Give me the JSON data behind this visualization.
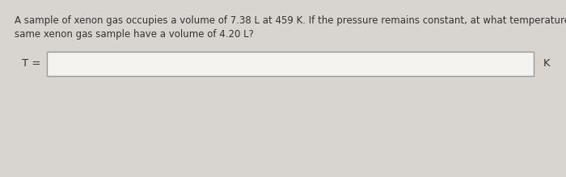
{
  "background_color": "#d8d4cf",
  "card_color": "#f0eeeb",
  "question_text_line1": "A sample of xenon gas occupies a volume of 7.38 L at 459 K. If the pressure remains constant, at what temperature will this",
  "question_text_line2": "same xenon gas sample have a volume of 4.20 L?",
  "label_T": "T =",
  "label_K": "K",
  "box_color": "#f5f3f0",
  "box_border_color": "#999999",
  "text_color": "#333333",
  "font_size_question": 8.5,
  "font_size_label": 9.5,
  "font_family": "DejaVu Sans"
}
